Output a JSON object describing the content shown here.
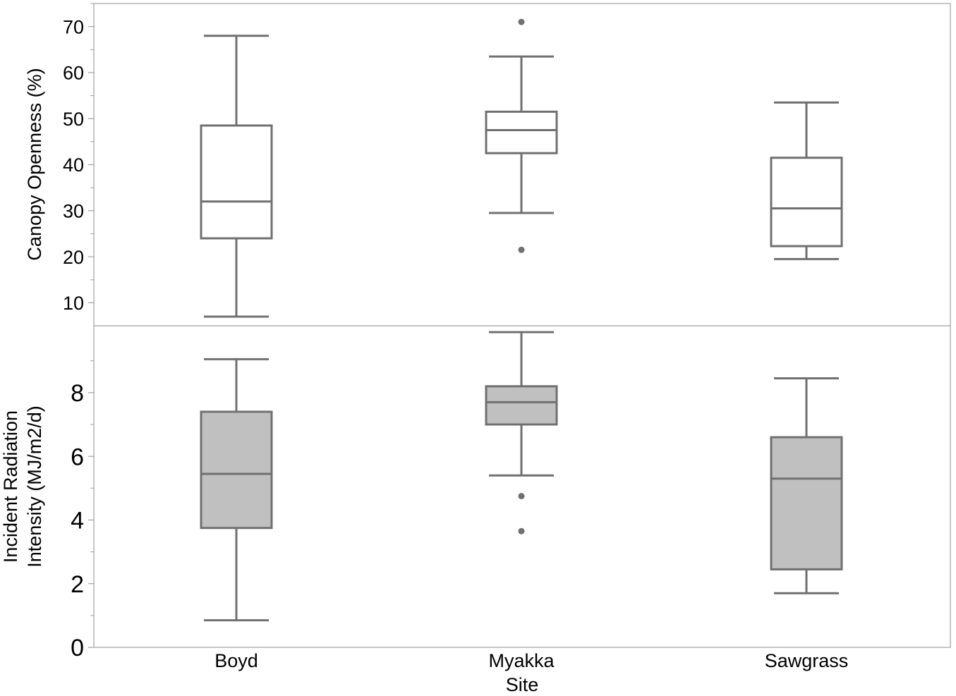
{
  "chart_data": {
    "type": "boxplot",
    "xlabel": "Site",
    "categories": [
      "Boyd",
      "Myakka",
      "Sawgrass"
    ],
    "colors": {
      "box_stroke": "#707070",
      "top_fill": "#ffffff",
      "bottom_fill": "#c0c0c0",
      "frame": "#a0a0a0"
    },
    "panels": [
      {
        "ylabel": "Canopy Openness (%)",
        "ylim": [
          5,
          75
        ],
        "yticks": [
          "10",
          "20",
          "30",
          "40",
          "50",
          "60",
          "70"
        ],
        "ytick_values": [
          10,
          20,
          30,
          40,
          50,
          60,
          70
        ],
        "minor_ticks": [
          15,
          25,
          35,
          45,
          55,
          65,
          75
        ],
        "boxes": [
          {
            "whisker_low": 7,
            "q1": 24,
            "median": 32,
            "q3": 48.5,
            "whisker_high": 68,
            "outliers": []
          },
          {
            "whisker_low": 29.5,
            "q1": 42.5,
            "median": 47.5,
            "q3": 51.5,
            "whisker_high": 63.5,
            "outliers": [
              71,
              21.5
            ]
          },
          {
            "whisker_low": 19.5,
            "q1": 22.3,
            "median": 30.5,
            "q3": 41.5,
            "whisker_high": 53.5,
            "outliers": []
          }
        ]
      },
      {
        "ylabel_lines": [
          "Incident Radiation",
          "Intensity (MJ/m2/d)"
        ],
        "ylim": [
          0,
          10.1
        ],
        "yticks": [
          "0",
          "2",
          "4",
          "6",
          "8"
        ],
        "ytick_values": [
          0,
          2,
          4,
          6,
          8
        ],
        "minor_ticks": [
          1,
          3,
          5,
          7,
          9
        ],
        "boxes": [
          {
            "whisker_low": 0.85,
            "q1": 3.75,
            "median": 5.45,
            "q3": 7.4,
            "whisker_high": 9.05,
            "outliers": []
          },
          {
            "whisker_low": 5.4,
            "q1": 7.0,
            "median": 7.7,
            "q3": 8.2,
            "whisker_high": 9.9,
            "outliers": [
              4.75,
              3.65
            ]
          },
          {
            "whisker_low": 1.7,
            "q1": 2.45,
            "median": 5.3,
            "q3": 6.6,
            "whisker_high": 8.45,
            "outliers": []
          }
        ]
      }
    ]
  }
}
